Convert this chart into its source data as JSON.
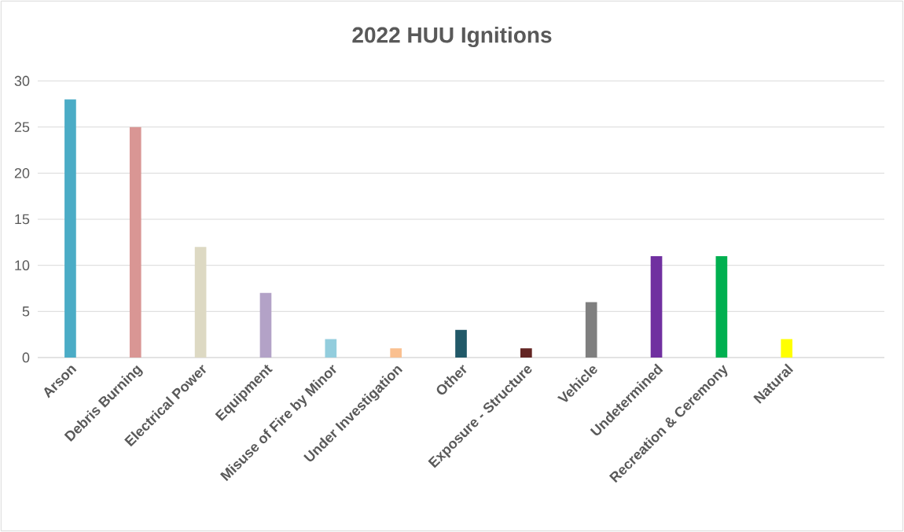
{
  "chart_data": {
    "type": "bar",
    "title": "2022 HUU Ignitions",
    "categories": [
      "Arson",
      "Debris Burning",
      "Electrical Power",
      "Equipment",
      "Misuse of Fire by Minor",
      "Under Investigation",
      "Other",
      "Exposure - Structure",
      "Vehicle",
      "Undetermined",
      "Recreation & Ceremony",
      "Natural",
      null
    ],
    "values": [
      28,
      25,
      12,
      7,
      2,
      1,
      3,
      1,
      6,
      11,
      11,
      2,
      null
    ],
    "colors": [
      "#4bacc6",
      "#d99694",
      "#ddd9c3",
      "#b3a2c7",
      "#93cddd",
      "#fac090",
      "#215968",
      "#632523",
      "#7f7f7f",
      "#7030a0",
      "#00b050",
      "#ffff00",
      "#000000"
    ],
    "ylim": [
      0,
      30
    ],
    "yticks": [
      0,
      5,
      10,
      15,
      20,
      25,
      30
    ],
    "grid": "y"
  }
}
